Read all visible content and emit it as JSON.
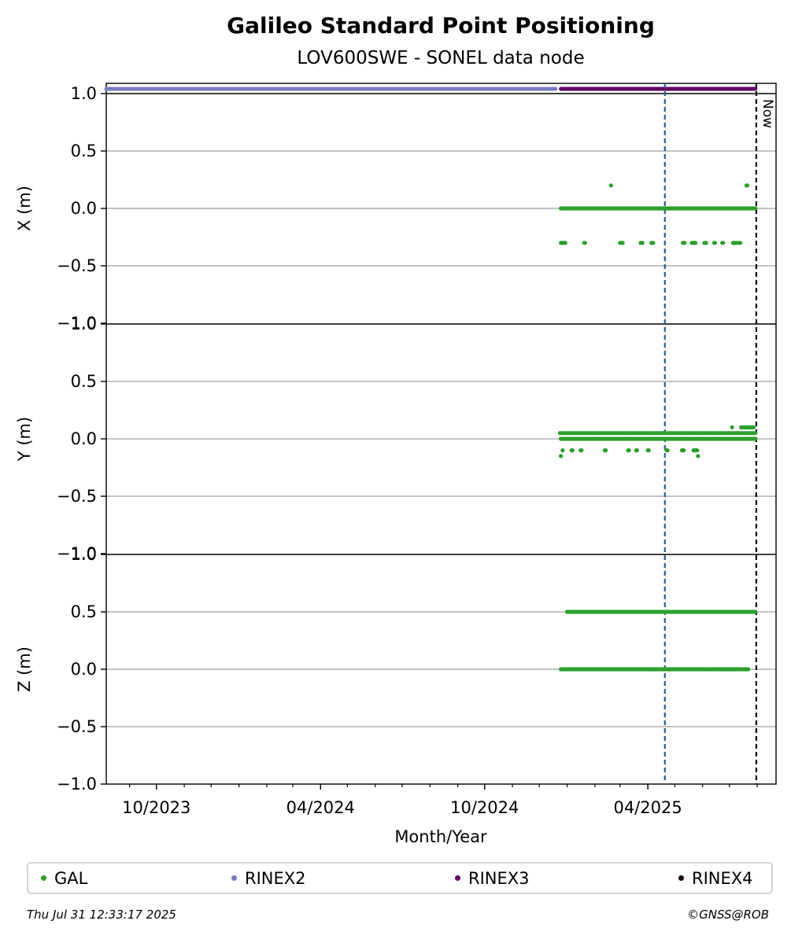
{
  "chart_data": {
    "type": "scatter",
    "title": "Galileo Standard Point Positioning",
    "subtitle": "LOV600SWE - SONEL data node",
    "xlabel": "Month/Year",
    "x_ticks": [
      "10/2023",
      "04/2024",
      "10/2024",
      "04/2025"
    ],
    "x_tick_dates": [
      "2023-10-01",
      "2024-04-01",
      "2024-10-01",
      "2025-04-01"
    ],
    "x_range": [
      "2023-08-06",
      "2025-08-22"
    ],
    "reference_lines": [
      {
        "date": "2025-04-20",
        "style": "dashed",
        "color": "#1f5fa8"
      },
      {
        "date": "2025-07-31",
        "style": "dashed",
        "color": "#000000",
        "label": "Now"
      }
    ],
    "availability": [
      {
        "name": "RINEX2",
        "color": "#7b7bc0",
        "start": "2023-08-06",
        "end": "2024-12-19"
      },
      {
        "name": "RINEX3",
        "color": "#620062",
        "start": "2024-12-25",
        "end": "2025-07-30"
      }
    ],
    "panels": [
      {
        "ylabel": "X (m)",
        "ylim": [
          -1.0,
          1.0
        ],
        "yticks": [
          "1.0",
          "0.5",
          "0.0",
          "−0.5",
          "−1.0"
        ],
        "points": [
          {
            "start": "2024-12-25",
            "end": "2025-07-30",
            "step": 1,
            "y": 0.0
          },
          {
            "start": "2024-12-25",
            "end": "2024-12-30",
            "step": 1,
            "y": -0.3
          },
          {
            "start": "2025-01-20",
            "end": "2025-01-21",
            "step": 1,
            "y": -0.3
          },
          {
            "start": "2025-03-01",
            "end": "2025-03-04",
            "step": 1,
            "y": -0.3
          },
          {
            "start": "2025-03-24",
            "end": "2025-03-26",
            "step": 1,
            "y": -0.3
          },
          {
            "start": "2025-04-05",
            "end": "2025-04-07",
            "step": 1,
            "y": -0.3
          },
          {
            "start": "2025-05-10",
            "end": "2025-05-12",
            "step": 1,
            "y": -0.3
          },
          {
            "start": "2025-05-20",
            "end": "2025-05-24",
            "step": 1,
            "y": -0.3
          },
          {
            "start": "2025-06-03",
            "end": "2025-06-05",
            "step": 1,
            "y": -0.3
          },
          {
            "start": "2025-06-14",
            "end": "2025-06-15",
            "step": 1,
            "y": -0.3
          },
          {
            "start": "2025-06-23",
            "end": "2025-06-24",
            "step": 1,
            "y": -0.3
          },
          {
            "start": "2025-07-05",
            "end": "2025-07-09",
            "step": 1,
            "y": -0.3
          },
          {
            "start": "2025-07-12",
            "end": "2025-07-13",
            "step": 1,
            "y": -0.3
          },
          {
            "start": "2025-02-19",
            "end": "2025-02-19",
            "step": 1,
            "y": 0.2
          },
          {
            "start": "2025-07-20",
            "end": "2025-07-21",
            "step": 1,
            "y": 0.2
          }
        ]
      },
      {
        "ylabel": "Y (m)",
        "ylim": [
          -1.0,
          1.0
        ],
        "yticks": [
          "1.0",
          "0.5",
          "0.0",
          "−0.5",
          "−1.0"
        ],
        "points": [
          {
            "start": "2024-12-25",
            "end": "2025-07-30",
            "step": 1,
            "y": 0.0
          },
          {
            "start": "2024-12-24",
            "end": "2025-07-30",
            "step": 2,
            "y": 0.05
          },
          {
            "start": "2024-12-25",
            "end": "2024-12-25",
            "step": 1,
            "y": -0.15
          },
          {
            "start": "2024-12-27",
            "end": "2024-12-27",
            "step": 1,
            "y": -0.1
          },
          {
            "start": "2025-01-06",
            "end": "2025-01-07",
            "step": 1,
            "y": -0.1
          },
          {
            "start": "2025-01-16",
            "end": "2025-01-17",
            "step": 1,
            "y": -0.1
          },
          {
            "start": "2025-02-12",
            "end": "2025-02-13",
            "step": 1,
            "y": -0.1
          },
          {
            "start": "2025-03-10",
            "end": "2025-03-11",
            "step": 1,
            "y": -0.1
          },
          {
            "start": "2025-03-19",
            "end": "2025-03-20",
            "step": 1,
            "y": -0.1
          },
          {
            "start": "2025-04-01",
            "end": "2025-04-02",
            "step": 1,
            "y": -0.1
          },
          {
            "start": "2025-04-22",
            "end": "2025-04-23",
            "step": 1,
            "y": -0.1
          },
          {
            "start": "2025-05-09",
            "end": "2025-05-11",
            "step": 1,
            "y": -0.1
          },
          {
            "start": "2025-05-22",
            "end": "2025-05-26",
            "step": 1,
            "y": -0.1
          },
          {
            "start": "2025-05-27",
            "end": "2025-05-27",
            "step": 1,
            "y": -0.15
          },
          {
            "start": "2025-07-04",
            "end": "2025-07-04",
            "step": 1,
            "y": 0.1
          },
          {
            "start": "2025-07-14",
            "end": "2025-07-28",
            "step": 1,
            "y": 0.1
          }
        ]
      },
      {
        "ylabel": "Z (m)",
        "ylim": [
          -1.0,
          1.0
        ],
        "yticks": [
          "1.0",
          "0.5",
          "0.0",
          "−0.5",
          "−1.0"
        ],
        "points": [
          {
            "start": "2024-12-25",
            "end": "2025-07-22",
            "step": 1,
            "y": 0.0
          },
          {
            "start": "2025-01-01",
            "end": "2025-07-30",
            "step": 1,
            "y": 0.5
          }
        ]
      }
    ]
  },
  "series_colors": {
    "GAL": "#2ca02c"
  },
  "legend": [
    {
      "label": "GAL",
      "color": "#2ca02c"
    },
    {
      "label": "RINEX2",
      "color": "#7b7bc0"
    },
    {
      "label": "RINEX3",
      "color": "#620062"
    },
    {
      "label": "RINEX4",
      "color": "#1a0010"
    }
  ],
  "footer": {
    "timestamp": "Thu Jul 31 12:33:17 2025",
    "credit": "©GNSS@ROB"
  }
}
